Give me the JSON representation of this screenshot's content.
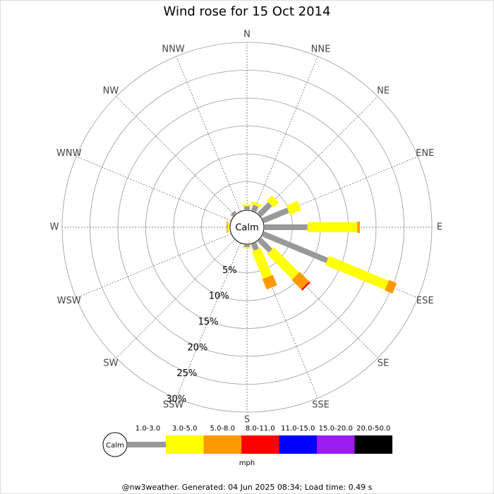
{
  "chart_data": {
    "type": "windrose",
    "title": "Wind rose for 15 Oct 2014",
    "calm_label": "Calm",
    "directions": [
      "N",
      "NNE",
      "NE",
      "ENE",
      "E",
      "ESE",
      "SE",
      "SSE",
      "S",
      "SSW",
      "SW",
      "WSW",
      "W",
      "WNW",
      "NW",
      "NNW"
    ],
    "rlim": [
      0,
      30
    ],
    "rticks": [
      {
        "value": 5,
        "label": "5%"
      },
      {
        "value": 10,
        "label": "10%"
      },
      {
        "value": 15,
        "label": "15%"
      },
      {
        "value": 20,
        "label": "20%"
      },
      {
        "value": 25,
        "label": "25%"
      },
      {
        "value": 30,
        "label": "30%"
      }
    ],
    "unit": "mph",
    "series": [
      {
        "name": "1.0-3.0",
        "color": "#999999",
        "values": [
          0.6,
          1,
          2.7,
          4.8,
          7.7,
          12.4,
          2.8,
          1.2,
          0.4,
          0,
          0,
          0,
          0,
          0,
          0.5,
          0
        ]
      },
      {
        "name": "3.0-5.0",
        "color": "#ffff00",
        "values": [
          0.3,
          0.5,
          1.3,
          2.2,
          8.9,
          11.6,
          6.4,
          5.3,
          0.2,
          0,
          0,
          0,
          0.3,
          0,
          0,
          0
        ]
      },
      {
        "name": "5.0-8.0",
        "color": "#ff9900",
        "values": [
          0,
          0,
          0,
          0,
          0.5,
          1.5,
          2.4,
          2,
          0,
          0,
          0,
          0,
          0.2,
          0,
          0,
          0
        ]
      },
      {
        "name": "8.0-11.0",
        "color": "#ff0000",
        "values": [
          0,
          0,
          0,
          0,
          0,
          0,
          0.3,
          0,
          0,
          0,
          0,
          0,
          0,
          0,
          0,
          0
        ]
      },
      {
        "name": "11.0-15.0",
        "color": "#0000ff",
        "values": [
          0,
          0,
          0,
          0,
          0,
          0,
          0,
          0,
          0,
          0,
          0,
          0,
          0,
          0,
          0,
          0
        ]
      },
      {
        "name": "15.0-20.0",
        "color": "#9b1cf0",
        "values": [
          0,
          0,
          0,
          0,
          0,
          0,
          0,
          0,
          0,
          0,
          0,
          0,
          0,
          0,
          0,
          0
        ]
      },
      {
        "name": "20.0-50.0",
        "color": "#000000",
        "values": [
          0,
          0,
          0,
          0,
          0,
          0,
          0,
          0,
          0,
          0,
          0,
          0,
          0,
          0,
          0,
          0
        ]
      }
    ],
    "footer": "@nw3weather. Generated: 04 Jun 2025 08:34; Load time: 0.49 s"
  }
}
